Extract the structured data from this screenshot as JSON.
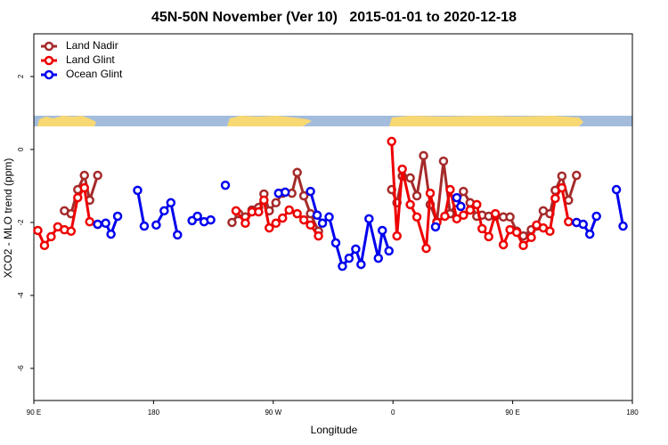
{
  "chart_data": {
    "type": "line",
    "title": "45N-50N November (Ver 10)   2015-01-01 to 2020-12-18",
    "x_label": "Longitude",
    "y_label": "XCO2 - MLO trend (ppm)",
    "xlim": [
      90,
      540
    ],
    "ylim": [
      -6.88,
      3.17
    ],
    "xticks": [
      {
        "value": 90,
        "label": "90 E"
      },
      {
        "value": 180,
        "label": "180"
      },
      {
        "value": 270,
        "label": "90 W"
      },
      {
        "value": 360,
        "label": "0"
      },
      {
        "value": 450,
        "label": "90 E"
      },
      {
        "value": 540,
        "label": "180"
      }
    ],
    "yticks": [
      -6,
      -4,
      -2,
      0,
      2
    ],
    "legend": "topleft",
    "series": [
      {
        "name": "Land Nadir",
        "color": "#a52a2a",
        "x": [
          113,
          118,
          123,
          128,
          132,
          138,
          null,
          239,
          244,
          249,
          254,
          259,
          263,
          267,
          272,
          277,
          284,
          288,
          293,
          298,
          304,
          null,
          359,
          363,
          367,
          373,
          378,
          383,
          388,
          393,
          398,
          403,
          408,
          413,
          418,
          423,
          427,
          432,
          437,
          443,
          448,
          453,
          458,
          464,
          468,
          473,
          478,
          482,
          487,
          492,
          498
        ],
        "values": [
          -1.68,
          -1.76,
          -1.1,
          -0.71,
          -1.39,
          -0.71,
          null,
          -2.0,
          -1.76,
          -1.85,
          -1.66,
          -1.59,
          -1.22,
          -1.68,
          -1.46,
          -1.2,
          -1.2,
          -0.63,
          -1.27,
          -1.76,
          -2.24,
          null,
          -1.1,
          -1.46,
          -0.73,
          -0.78,
          -1.27,
          -0.17,
          -1.51,
          -1.98,
          -0.32,
          -1.76,
          -1.46,
          -1.15,
          -1.46,
          -1.83,
          -1.8,
          -1.83,
          -1.83,
          -1.85,
          -1.85,
          -2.24,
          -2.37,
          -2.2,
          -2.1,
          -1.68,
          -1.76,
          -1.12,
          -0.73,
          -1.39,
          -0.71
        ]
      },
      {
        "name": "Land Glint",
        "color": "#ee0000",
        "x": [
          93,
          98,
          103,
          108,
          113,
          118,
          123,
          128,
          132,
          138,
          null,
          242,
          249,
          254,
          259,
          263,
          267,
          272,
          277,
          282,
          288,
          293,
          298,
          304,
          null,
          359,
          363,
          367,
          373,
          378,
          385,
          388,
          393,
          399,
          403,
          408,
          413,
          418,
          423,
          427,
          432,
          437,
          443,
          448,
          453,
          458,
          464,
          468,
          473,
          478,
          482,
          487,
          492,
          498
        ],
        "values": [
          -2.22,
          -2.63,
          -2.39,
          -2.12,
          -2.2,
          -2.24,
          -1.32,
          -1.05,
          -1.98,
          -2.05,
          null,
          -1.68,
          -2.02,
          -1.71,
          -1.71,
          -1.39,
          -2.15,
          -2.02,
          -1.88,
          -1.66,
          -1.76,
          -1.93,
          -2.07,
          -2.37,
          null,
          0.22,
          -2.37,
          -0.54,
          -1.51,
          -1.85,
          -2.71,
          -1.2,
          -2.0,
          -1.83,
          -1.1,
          -1.9,
          -1.8,
          -1.66,
          -1.51,
          -2.17,
          -2.39,
          -1.76,
          -2.61,
          -2.2,
          -2.27,
          -2.63,
          -2.41,
          -2.07,
          -2.15,
          -2.24,
          -1.34,
          -1.05,
          -1.98,
          -2.0
        ]
      },
      {
        "name": "Ocean Glint",
        "color": "#0000ee",
        "x": [
          138,
          144,
          148,
          153,
          null,
          168,
          173,
          null,
          182,
          188,
          193,
          198,
          null,
          209,
          213,
          218,
          223,
          null,
          234,
          null,
          274,
          279,
          null,
          298,
          303,
          307,
          312,
          317,
          322,
          327,
          332,
          336,
          342,
          349,
          352,
          357,
          null,
          392,
          null,
          408,
          411,
          null,
          498,
          503,
          508,
          513,
          null,
          528,
          533
        ],
        "values": [
          -2.05,
          -2.02,
          -2.32,
          -1.83,
          null,
          -1.12,
          -2.1,
          null,
          -2.07,
          -1.68,
          -1.46,
          -2.34,
          null,
          -1.95,
          -1.83,
          -1.98,
          -1.93,
          null,
          -0.98,
          null,
          -1.2,
          -1.17,
          null,
          -1.15,
          -1.8,
          -2.02,
          -1.85,
          -2.56,
          -3.2,
          -2.98,
          -2.73,
          -3.15,
          -1.9,
          -2.98,
          -2.22,
          -2.78,
          null,
          -2.12,
          null,
          -1.32,
          -1.56,
          null,
          -2.0,
          -2.05,
          -2.32,
          -1.83,
          null,
          -1.1,
          -2.1
        ]
      }
    ]
  }
}
